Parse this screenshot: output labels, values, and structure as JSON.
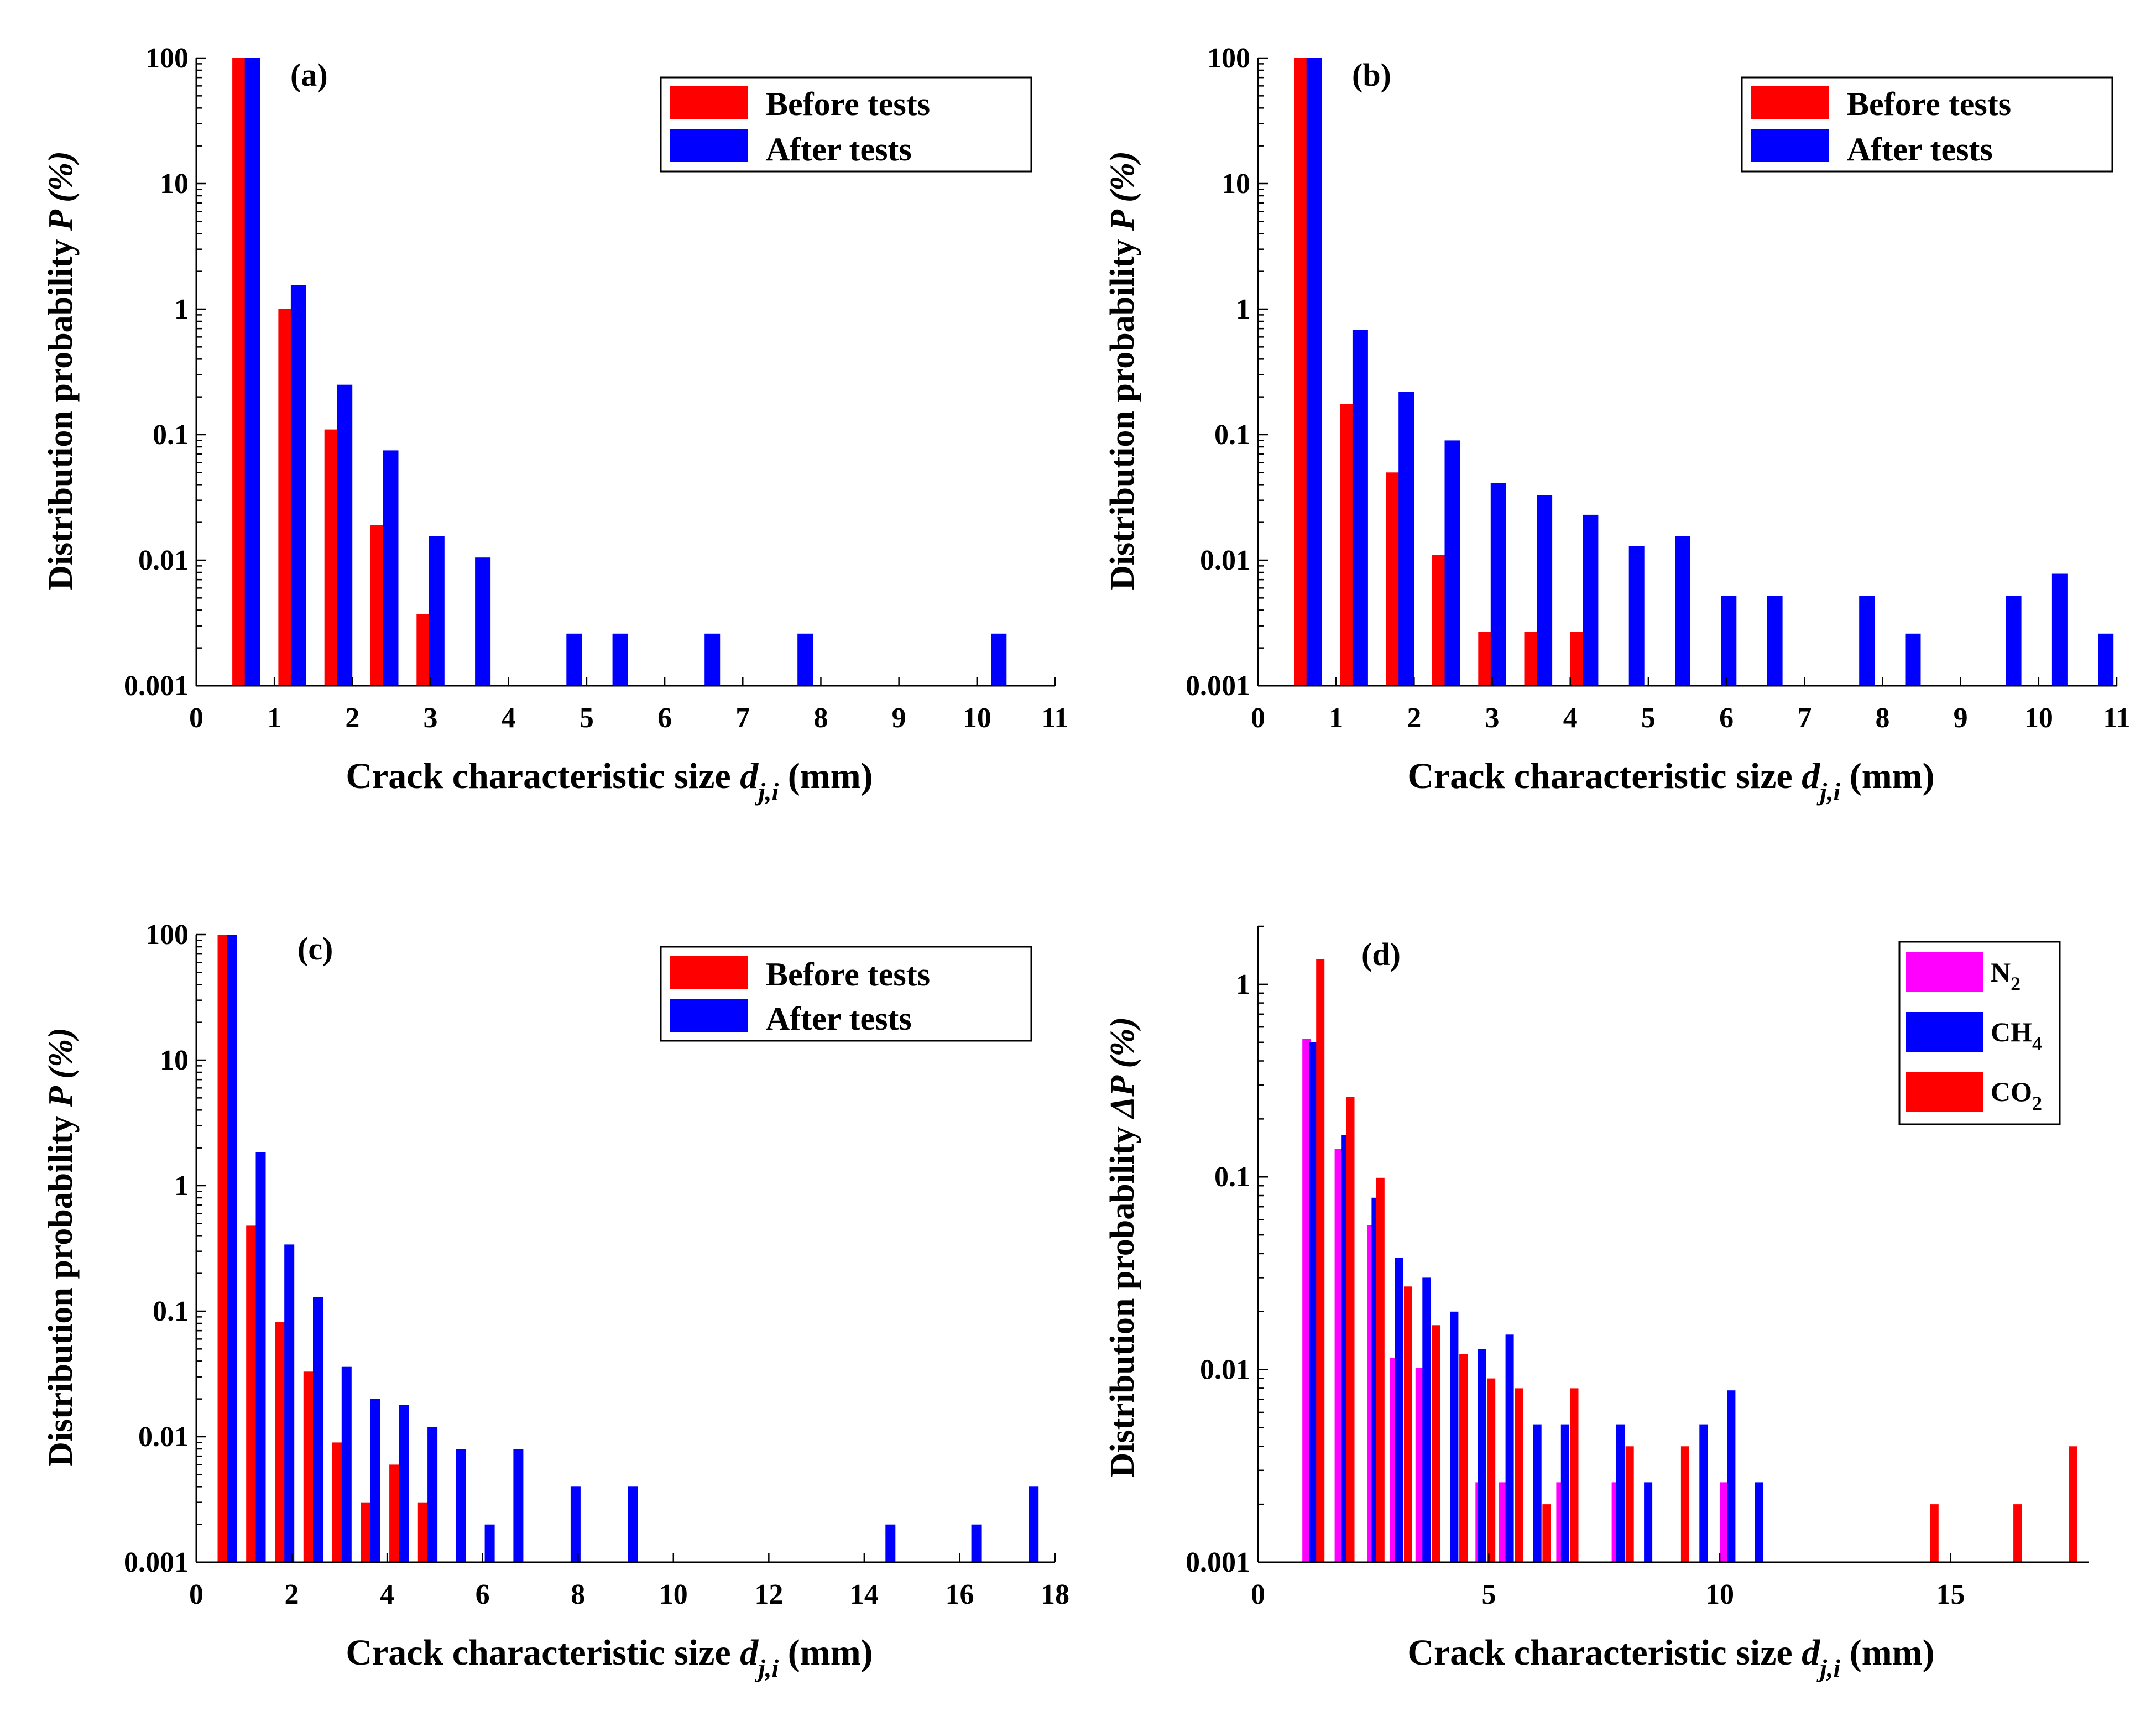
{
  "chart_data": [
    {
      "panel": "(a)",
      "type": "bar",
      "yscale": "log",
      "xlim": [
        0,
        11
      ],
      "ylim": [
        0.001,
        100
      ],
      "xticks": [
        "0",
        "1",
        "2",
        "3",
        "4",
        "5",
        "6",
        "7",
        "8",
        "9",
        "10",
        "11"
      ],
      "yticks": [
        "0.001",
        "0.01",
        "0.1",
        "1",
        "10",
        "100"
      ],
      "xlabel": "Crack characteristic size",
      "xlabel_var": "d",
      "xlabel_sub": "j,i",
      "xlabel_unit": "(mm)",
      "ylabel": "Distribution probability",
      "ylabel_var": "P (%)",
      "legend": {
        "position": "top-right",
        "entries": [
          "Before tests",
          "After tests"
        ]
      },
      "series": [
        {
          "name": "Before tests",
          "color": "#ff0000",
          "x": [
            0.56,
            1.15,
            1.74,
            2.33,
            2.92
          ],
          "values": [
            100,
            1.0,
            0.11,
            0.019,
            0.0037
          ]
        },
        {
          "name": "After tests",
          "color": "#0000ff",
          "x": [
            0.72,
            1.31,
            1.9,
            2.49,
            3.08,
            3.67,
            4.84,
            5.43,
            6.61,
            7.8,
            10.28
          ],
          "values": [
            100,
            1.55,
            0.25,
            0.075,
            0.0155,
            0.0105,
            0.0026,
            0.0026,
            0.0026,
            0.0026,
            0.0026
          ]
        }
      ]
    },
    {
      "panel": "(b)",
      "type": "bar",
      "yscale": "log",
      "xlim": [
        0,
        11
      ],
      "ylim": [
        0.001,
        100
      ],
      "xticks": [
        "0",
        "1",
        "2",
        "3",
        "4",
        "5",
        "6",
        "7",
        "8",
        "9",
        "10",
        "11"
      ],
      "yticks": [
        "0.001",
        "0.01",
        "0.1",
        "1",
        "10",
        "100"
      ],
      "xlabel": "Crack characteristic size",
      "xlabel_var": "d",
      "xlabel_sub": "j,i",
      "xlabel_unit": "(mm)",
      "ylabel": "Distribution probability",
      "ylabel_var": "P (%)",
      "legend": {
        "position": "top-right",
        "entries": [
          "Before tests",
          "After tests"
        ]
      },
      "series": [
        {
          "name": "Before tests",
          "color": "#ff0000",
          "x": [
            0.56,
            1.15,
            1.74,
            2.33,
            2.92,
            3.51,
            4.1
          ],
          "values": [
            100,
            0.175,
            0.05,
            0.011,
            0.0027,
            0.0027,
            0.0027
          ]
        },
        {
          "name": "After tests",
          "color": "#0000ff",
          "x": [
            0.72,
            1.31,
            1.9,
            2.49,
            3.08,
            3.67,
            4.26,
            4.85,
            5.44,
            6.03,
            6.62,
            7.8,
            8.39,
            9.68,
            10.27,
            10.86
          ],
          "values": [
            100,
            0.68,
            0.22,
            0.09,
            0.041,
            0.033,
            0.023,
            0.013,
            0.0155,
            0.0052,
            0.0052,
            0.0052,
            0.0026,
            0.0052,
            0.0078,
            0.0026
          ]
        }
      ]
    },
    {
      "panel": "(c)",
      "type": "bar",
      "yscale": "log",
      "xlim": [
        0,
        18
      ],
      "ylim": [
        0.001,
        100
      ],
      "xticks": [
        "0",
        "2",
        "4",
        "6",
        "8",
        "10",
        "12",
        "14",
        "16",
        "18"
      ],
      "yticks": [
        "0.001",
        "0.01",
        "0.1",
        "1",
        "10",
        "100"
      ],
      "xlabel": "Crack characteristic size",
      "xlabel_var": "d",
      "xlabel_sub": "j,i",
      "xlabel_unit": "(mm)",
      "ylabel": "Distribution probability",
      "ylabel_var": "P (%)",
      "legend": {
        "position": "top-right",
        "entries": [
          "Before tests",
          "After tests"
        ]
      },
      "series": [
        {
          "name": "Before tests",
          "color": "#ff0000",
          "x": [
            0.55,
            1.15,
            1.75,
            2.35,
            2.95,
            3.55,
            4.15,
            4.75
          ],
          "values": [
            100,
            0.48,
            0.082,
            0.033,
            0.009,
            0.003,
            0.006,
            0.003
          ]
        },
        {
          "name": "After tests",
          "color": "#0000ff",
          "x": [
            0.75,
            1.35,
            1.95,
            2.55,
            3.15,
            3.75,
            4.35,
            4.95,
            5.55,
            6.15,
            6.75,
            7.95,
            9.15,
            14.55,
            16.35,
            17.55
          ],
          "values": [
            100,
            1.85,
            0.34,
            0.13,
            0.036,
            0.02,
            0.018,
            0.012,
            0.008,
            0.002,
            0.008,
            0.004,
            0.004,
            0.002,
            0.002,
            0.004
          ]
        }
      ]
    },
    {
      "panel": "(d)",
      "type": "bar",
      "yscale": "log",
      "xlim": [
        0,
        18
      ],
      "ylim": [
        0.001,
        2
      ],
      "xticks": [
        "0",
        "5",
        "10",
        "15"
      ],
      "yticks": [
        "0.001",
        "0.01",
        "0.1",
        "1"
      ],
      "xlabel": "Crack characteristic size",
      "xlabel_var": "d",
      "xlabel_sub": "j,i",
      "xlabel_unit": "(mm)",
      "ylabel": "Distribution probability",
      "ylabel_var": "ΔP (%)",
      "legend": {
        "position": "top-right",
        "entries": [
          "N",
          "CH",
          "CO"
        ],
        "subscripts": [
          "2",
          "4",
          "2"
        ]
      },
      "series": [
        {
          "name": "N2",
          "color": "#ff00ff",
          "x": [
            1.05,
            1.75,
            2.45,
            2.95,
            3.5,
            4.8,
            5.3,
            6.55,
            7.75,
            10.1
          ],
          "values": [
            0.52,
            0.14,
            0.056,
            0.0115,
            0.0102,
            0.0026,
            0.0026,
            0.0026,
            0.0026,
            0.0026
          ]
        },
        {
          "name": "CH4",
          "color": "#0000ff",
          "x": [
            1.2,
            1.9,
            2.55,
            3.05,
            3.65,
            4.25,
            4.85,
            5.45,
            6.05,
            6.65,
            7.85,
            8.45,
            9.65,
            10.25,
            10.85
          ],
          "values": [
            0.5,
            0.165,
            0.078,
            0.038,
            0.03,
            0.02,
            0.0128,
            0.0152,
            0.0052,
            0.0052,
            0.0052,
            0.0026,
            0.0052,
            0.0078,
            0.0026
          ]
        },
        {
          "name": "CO2",
          "color": "#ff0000",
          "x": [
            1.35,
            2.0,
            2.65,
            3.25,
            3.85,
            4.45,
            5.05,
            5.65,
            6.25,
            6.85,
            8.05,
            9.25,
            14.65,
            16.45,
            17.65
          ],
          "values": [
            1.35,
            0.26,
            0.099,
            0.027,
            0.017,
            0.012,
            0.009,
            0.008,
            0.002,
            0.008,
            0.004,
            0.004,
            0.002,
            0.002,
            0.004
          ]
        }
      ]
    }
  ]
}
